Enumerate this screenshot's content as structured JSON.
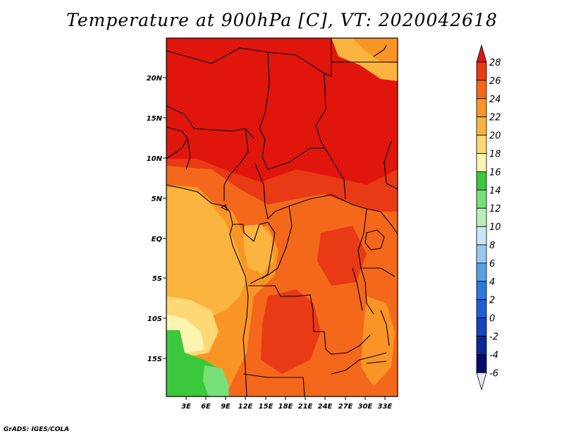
{
  "title": "Temperature at 900hPa [C], VT: 2020042618",
  "credit": "GrADS: IGES/COLA",
  "lat_labels": [
    "20N",
    "15N",
    "10N",
    "5N",
    "EQ",
    "5S",
    "10S",
    "15S"
  ],
  "lon_labels": [
    "3E",
    "6E",
    "9E",
    "12E",
    "15E",
    "18E",
    "21E",
    "24E",
    "27E",
    "30E",
    "33E"
  ],
  "colorbar": {
    "levels": [
      "28",
      "26",
      "24",
      "22",
      "20",
      "18",
      "16",
      "14",
      "12",
      "10",
      "8",
      "6",
      "4",
      "2",
      "0",
      "-2",
      "-4",
      "-6"
    ],
    "colors": [
      "#d7191c",
      "#e83a14",
      "#f4681b",
      "#f99526",
      "#fbb440",
      "#fdd874",
      "#fdf4b0",
      "#3cc83c",
      "#78e078",
      "#b7f0b7",
      "#c8e6f8",
      "#96c8f0",
      "#5aa0e6",
      "#2d78dc",
      "#1e5fd2",
      "#1446be",
      "#0a2896",
      "#050a6e",
      "#e6e6f5"
    ]
  },
  "palette": {
    "hot": "#e0160c",
    "very_warm": "#e83a14",
    "warm": "#f4681b",
    "mild": "#f99526",
    "cool": "#fbb440",
    "cooler": "#fdd874",
    "pale": "#fdf4b0",
    "green": "#3cc83c",
    "light_green": "#78e078"
  }
}
